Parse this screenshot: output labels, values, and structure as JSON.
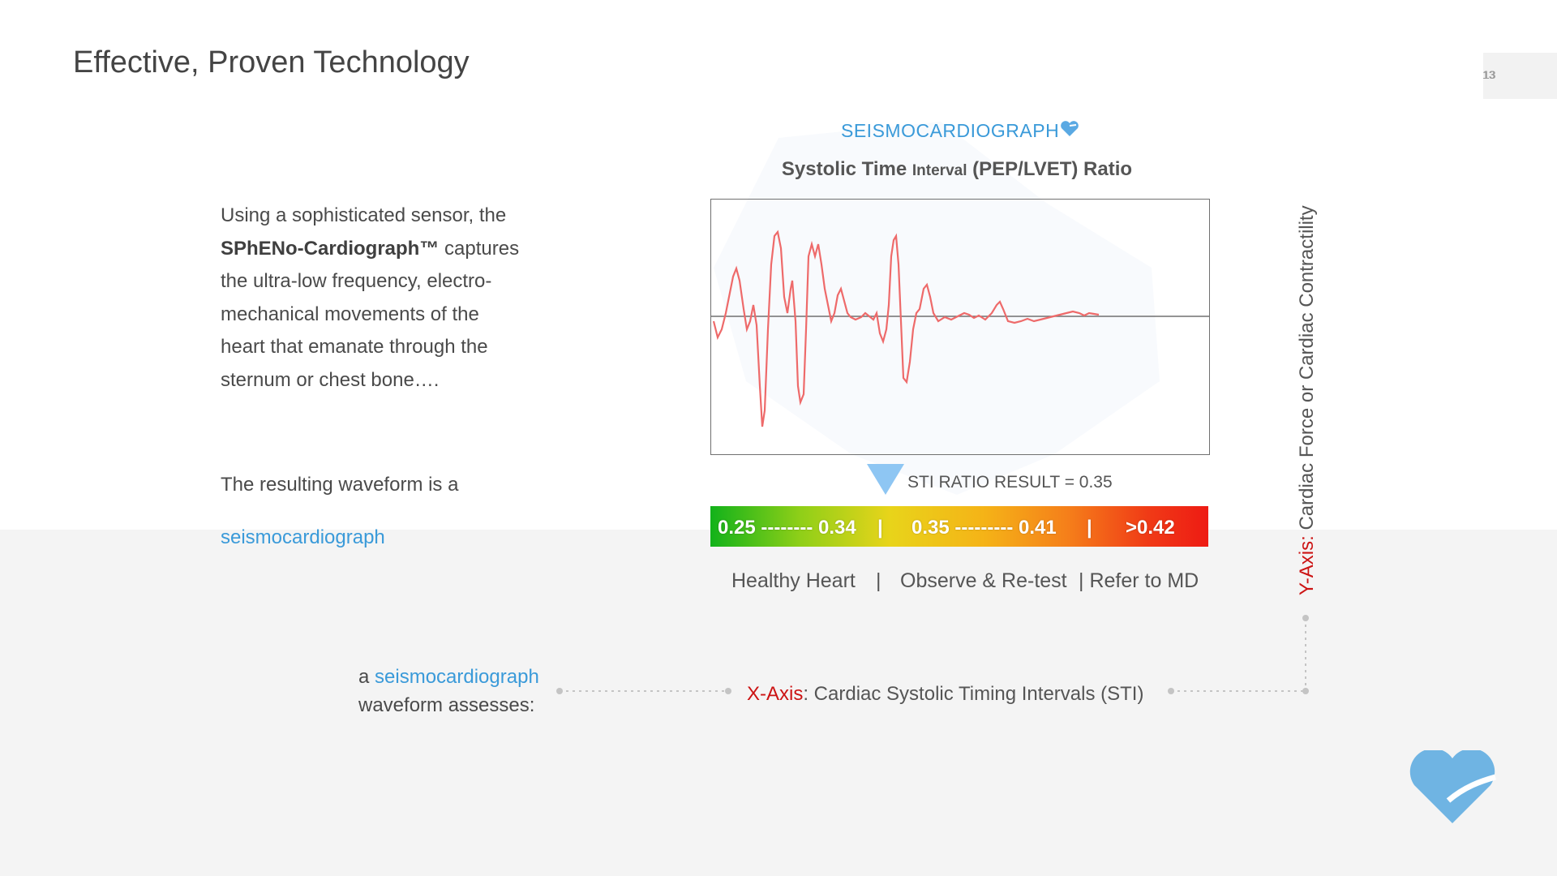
{
  "header": {
    "title": "Effective, Proven Technology",
    "page_number": "13"
  },
  "intro": {
    "line1": "Using a sophisticated sensor, the",
    "brand": "SPhENo-Cardiograph™",
    "line2_rest": " captures",
    "line3": "the ultra-low frequency, electro-",
    "line4": "mechanical movements of the",
    "line5": "heart that emanate through the",
    "line6": "sternum or chest bone…."
  },
  "result_text": {
    "prefix": "The resulting waveform is a",
    "link": "seismocardiograph"
  },
  "chart": {
    "heading": "SEISMOCARDIOGRAPH",
    "subtitle_bold_a": "Systolic Time ",
    "subtitle_small": "Interval",
    "subtitle_bold_b": " (PEP/LVET) Ratio",
    "sti_result": "STI RATIO RESULT = 0.35",
    "scale": {
      "seg1": "0.25 -------- 0.34",
      "sep1": "|",
      "seg2": "0.35 --------- 0.41",
      "sep2": "|",
      "seg3": ">0.42"
    },
    "labels": {
      "healthy": "Healthy Heart",
      "sep1": "|",
      "observe": "Observe & Re-test",
      "refer": "| Refer to MD"
    },
    "waveform_color": "#ee6a6a"
  },
  "axes": {
    "y_prefix": "Y-Axis:",
    "y_text": " Cardiac Force or Cardiac Contractility",
    "x_prefix": "X-Axis",
    "x_text": ": Cardiac Systolic Timing Intervals (STI)"
  },
  "assess": {
    "a": "a ",
    "link": "seismocardiograph",
    "line2": "waveform assesses:"
  },
  "colors": {
    "accent_blue": "#3a9ad9",
    "axis_red": "#cc1414",
    "heart_blue": "#6fb4e3"
  },
  "icons": [
    "heart-logo-icon",
    "small-heart-icon",
    "down-triangle-icon"
  ]
}
